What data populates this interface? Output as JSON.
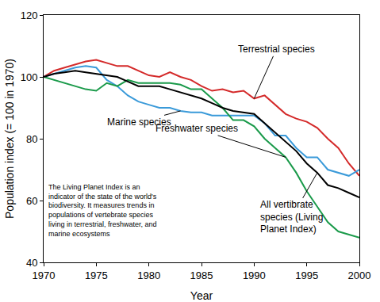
{
  "chart_data": {
    "type": "line",
    "x_label": "Year",
    "y_label": "Population index (= 100 in 1970)",
    "x": [
      1970,
      1971,
      1972,
      1973,
      1974,
      1975,
      1976,
      1977,
      1978,
      1979,
      1980,
      1981,
      1982,
      1983,
      1984,
      1985,
      1986,
      1987,
      1988,
      1989,
      1990,
      1991,
      1992,
      1993,
      1994,
      1995,
      1996,
      1997,
      1998,
      1999,
      2000
    ],
    "series": [
      {
        "name": "Terrestrial species",
        "color": "#d42a2a",
        "values": [
          100,
          102,
          103,
          104,
          105,
          105.5,
          104.5,
          103.5,
          103.5,
          102,
          100.5,
          100,
          101.5,
          100,
          99,
          97,
          95.5,
          96,
          95,
          95.5,
          93,
          94,
          91,
          88,
          86.5,
          85.5,
          83.5,
          80,
          77,
          72,
          68
        ]
      },
      {
        "name": "Marine species",
        "color": "#3a9ad9",
        "values": [
          100,
          101,
          102,
          103,
          103.5,
          103,
          99,
          97,
          94,
          92,
          91,
          90,
          90,
          89,
          88.5,
          88.5,
          87.5,
          87.5,
          87.5,
          87.5,
          87.5,
          85,
          81,
          81,
          77,
          74,
          74,
          70,
          69,
          68,
          70
        ]
      },
      {
        "name": "Freshwater species",
        "color": "#1a9a4a",
        "values": [
          100,
          99,
          98,
          97,
          96,
          95.5,
          98,
          97,
          99,
          98,
          98,
          98,
          98,
          97.5,
          96,
          96,
          93,
          90,
          86,
          86,
          84,
          80,
          77,
          74,
          69,
          63,
          58,
          53,
          50,
          49,
          48
        ]
      },
      {
        "name": "All vertibrate species (Living Planet Index)",
        "color": "#000000",
        "values": [
          100,
          101,
          101.5,
          102,
          101.5,
          101,
          100.5,
          100,
          98.5,
          97,
          97,
          97,
          96,
          95,
          94,
          93,
          91.5,
          90,
          89,
          88.5,
          88,
          85,
          82,
          79,
          76,
          72,
          69,
          65,
          64,
          62.5,
          61
        ]
      }
    ],
    "annotations": [
      "The Living Planet Index is an indicator of the state of the world's biodiversity. It measures trends in populations of vertebrate species living in terrestrial, freshwater, and marine ecosystems"
    ],
    "xlim": [
      1970,
      2000
    ],
    "xticks": [
      1970,
      1975,
      1980,
      1985,
      1990,
      1995,
      2000
    ],
    "ylim": [
      40,
      120
    ],
    "yticks": [
      40,
      60,
      80,
      100,
      120
    ],
    "grid": false
  }
}
